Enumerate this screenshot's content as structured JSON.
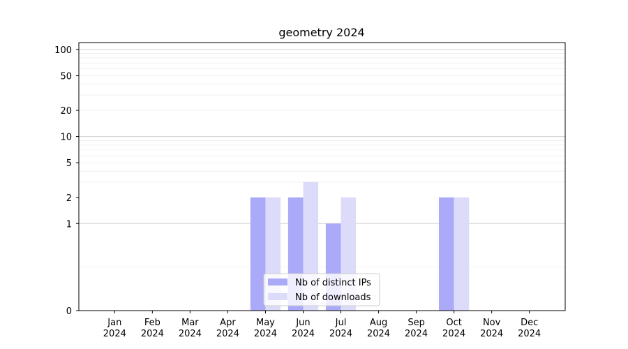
{
  "chart_data": {
    "type": "bar",
    "title": "geometry 2024",
    "categories": [
      [
        "Jan",
        "2024"
      ],
      [
        "Feb",
        "2024"
      ],
      [
        "Mar",
        "2024"
      ],
      [
        "Apr",
        "2024"
      ],
      [
        "May",
        "2024"
      ],
      [
        "Jun",
        "2024"
      ],
      [
        "Jul",
        "2024"
      ],
      [
        "Aug",
        "2024"
      ],
      [
        "Sep",
        "2024"
      ],
      [
        "Oct",
        "2024"
      ],
      [
        "Nov",
        "2024"
      ],
      [
        "Dec",
        "2024"
      ]
    ],
    "series": [
      {
        "name": "Nb of distinct IPs",
        "color": "#aaaaf8",
        "values": [
          0,
          0,
          0,
          0,
          2,
          2,
          1,
          0,
          0,
          2,
          0,
          0
        ]
      },
      {
        "name": "Nb of downloads",
        "color": "#dcdcfa",
        "values": [
          0,
          0,
          0,
          0,
          2,
          3,
          2,
          0,
          0,
          2,
          0,
          0
        ]
      }
    ],
    "xlabel": "",
    "ylabel": "",
    "yscale": "symlog",
    "ylim": [
      0,
      120
    ],
    "yticks": [
      0,
      1,
      2,
      5,
      10,
      20,
      50,
      100
    ],
    "grid": true,
    "legend_position": "lower center"
  }
}
